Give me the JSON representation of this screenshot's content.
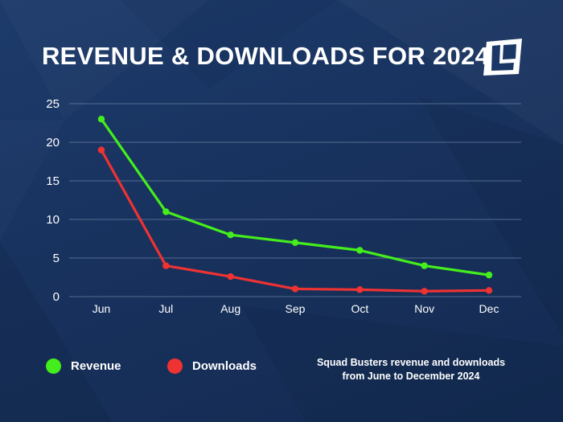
{
  "header": {
    "title": "REVENUE & DOWNLOADS FOR 2024"
  },
  "caption": {
    "line1": "Squad Busters revenue and downloads",
    "line2": "from June to December 2024"
  },
  "legend": {
    "revenue_label": "Revenue",
    "downloads_label": "Downloads"
  },
  "colors": {
    "revenue": "#44ee1c",
    "downloads": "#ef3232",
    "background": "#1a3765",
    "grid": "#5f7699",
    "tick_text": "#ffffff"
  },
  "chart_data": {
    "type": "line",
    "title": "REVENUE & DOWNLOADS FOR 2024",
    "categories": [
      "Jun",
      "Jul",
      "Aug",
      "Sep",
      "Oct",
      "Nov",
      "Dec"
    ],
    "yticks": [
      0,
      5,
      10,
      15,
      20,
      25
    ],
    "ylim": [
      0,
      25
    ],
    "grid": true,
    "legend_position": "bottom-left",
    "series": [
      {
        "name": "Revenue",
        "values": [
          23,
          11,
          8,
          7,
          6,
          4,
          2.8
        ]
      },
      {
        "name": "Downloads",
        "values": [
          19,
          4,
          2.6,
          1,
          0.9,
          0.7,
          0.8
        ]
      }
    ]
  }
}
